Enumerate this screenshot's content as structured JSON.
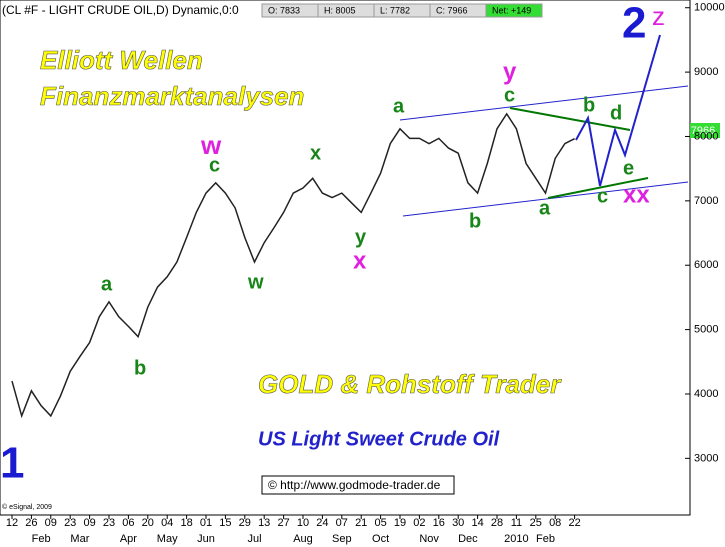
{
  "chart_data": {
    "type": "line",
    "title": "(CL #F - LIGHT CRUDE OIL,D) Dynamic,0:0",
    "quote": [
      "O: 7833",
      "H: 8005",
      "L: 7782",
      "C: 7966",
      "Net: +149"
    ],
    "price_tag": "7966",
    "categories": [
      "12",
      null,
      "26",
      null,
      "09",
      null,
      "23",
      null,
      "09",
      null,
      "23",
      null,
      "06",
      null,
      "20",
      null,
      "04",
      null,
      "18",
      null,
      "01",
      null,
      "15",
      null,
      "29",
      null,
      "13",
      null,
      "27",
      null,
      "10",
      null,
      "24",
      null,
      "07",
      null,
      "21",
      null,
      "05",
      null,
      "19",
      null,
      "02",
      null,
      "16",
      null,
      "30",
      null,
      "14",
      null,
      "28",
      null,
      "11",
      null,
      "25",
      null,
      "08",
      null,
      "22"
    ],
    "months": [
      null,
      null,
      null,
      "Feb",
      null,
      null,
      null,
      "Mar",
      null,
      null,
      null,
      null,
      "Apr",
      null,
      null,
      null,
      "May",
      null,
      null,
      null,
      "Jun",
      null,
      null,
      null,
      null,
      "Jul",
      null,
      null,
      null,
      null,
      "Aug",
      null,
      null,
      null,
      "Sep",
      null,
      null,
      null,
      "Oct",
      null,
      null,
      null,
      null,
      "Nov",
      null,
      null,
      null,
      "Dec",
      null,
      null,
      null,
      null,
      "2010",
      null,
      null,
      "Feb",
      null,
      null,
      null
    ],
    "values": [
      4200,
      3660,
      4050,
      3820,
      3660,
      3970,
      4350,
      4580,
      4800,
      5200,
      5430,
      5200,
      5050,
      4890,
      5350,
      5660,
      5820,
      6050,
      6430,
      6820,
      7120,
      7280,
      7120,
      6890,
      6430,
      6050,
      6350,
      6580,
      6820,
      7120,
      7200,
      7350,
      7120,
      7050,
      7120,
      6970,
      6820,
      7120,
      7430,
      7890,
      8120,
      7970,
      7970,
      7890,
      7970,
      7820,
      7740,
      7280,
      7120,
      7580,
      8120,
      8350,
      8120,
      7580,
      7350,
      7120,
      7660,
      7890,
      7966
    ],
    "color": "#222222",
    "ylim": [
      2120,
      10120
    ],
    "yticks": [
      3000,
      4000,
      5000,
      6000,
      7000,
      8000,
      9000,
      10000
    ],
    "annotations": [
      "Elliott Wellen",
      "Finanzmarktanalysen",
      "GOLD & Rohstoff Trader",
      "US Light Sweet Crude Oil",
      "© http://www.godmode-trader.de",
      "© eSignal, 2009",
      "1",
      "2",
      "z",
      "a",
      "b",
      "w",
      "c",
      "w",
      "x",
      "y",
      "x",
      "a",
      "y",
      "c",
      "b",
      "b",
      "d",
      "a",
      "c",
      "e",
      "xx"
    ]
  }
}
